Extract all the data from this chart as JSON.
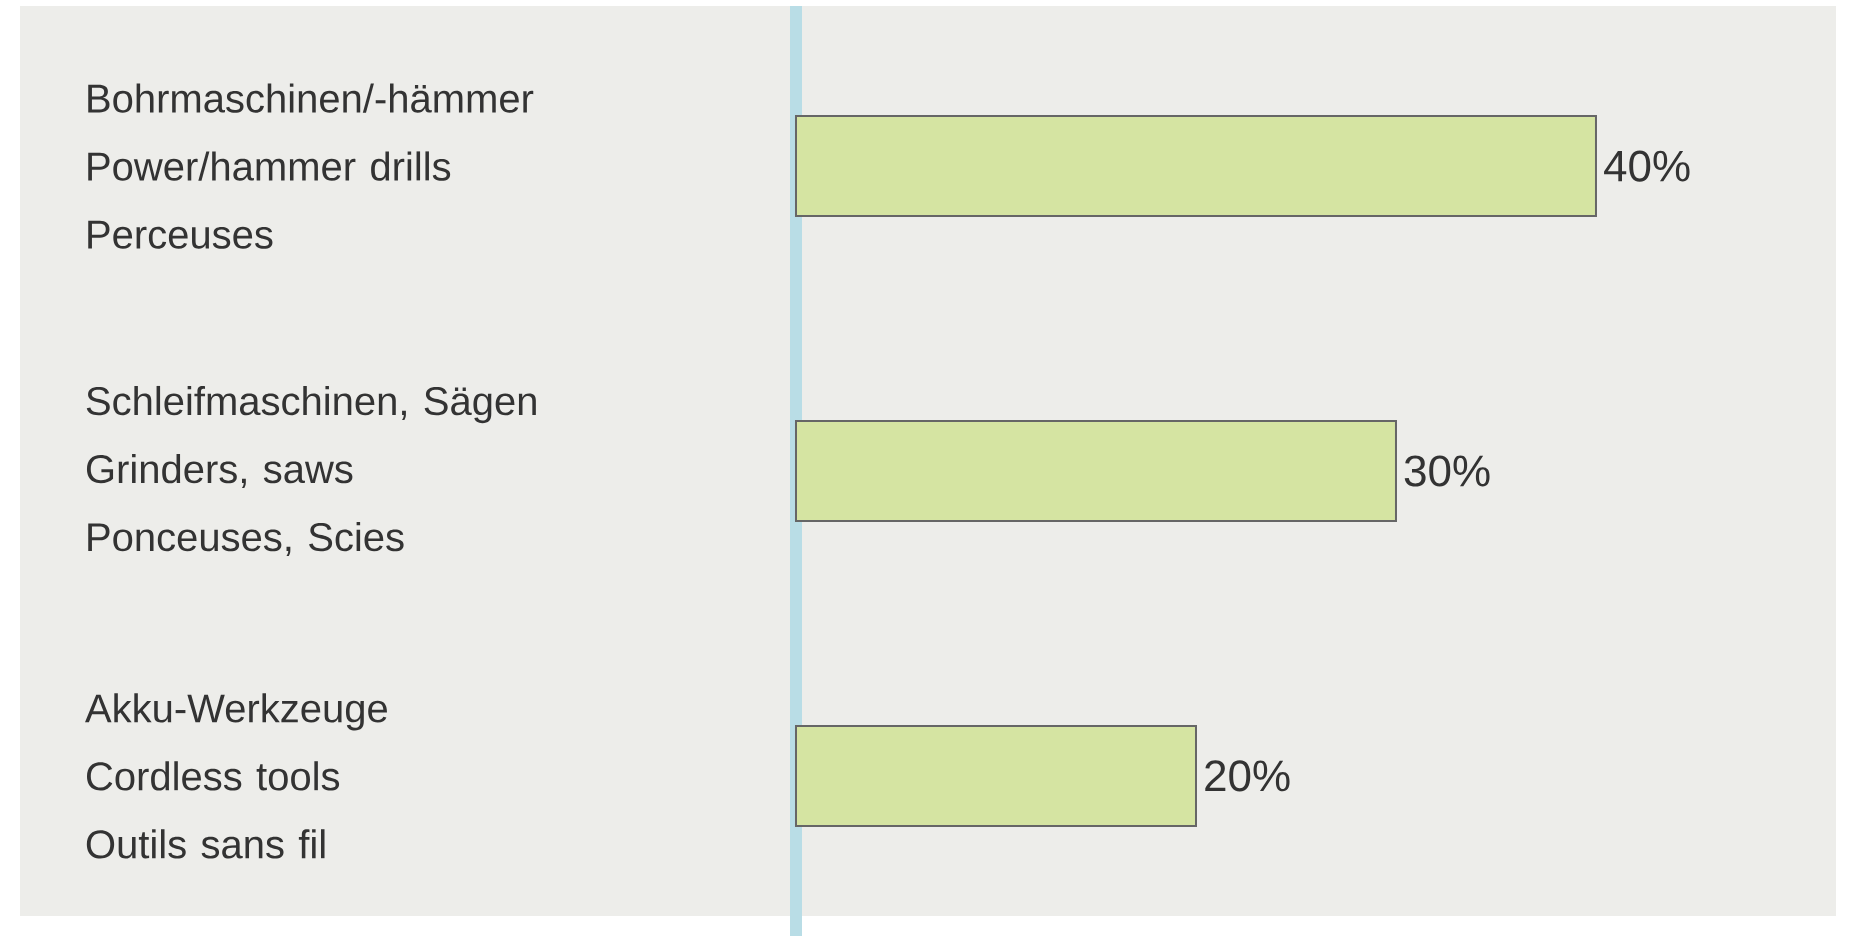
{
  "chart_data": {
    "type": "bar",
    "orientation": "horizontal",
    "categories": [
      "Bohrmaschinen/-hämmer\nPower/hammer drills\nPerceuses",
      "Schleifmaschinen, Sägen\nGrinders, saws\nPonceuses, Scies",
      "Akku-Werkzeuge\nCordless tools\nOutils sans fil"
    ],
    "values": [
      40,
      30,
      20
    ],
    "value_labels": [
      "40%",
      "30%",
      "20%"
    ],
    "color": "#d5e4a2"
  }
}
